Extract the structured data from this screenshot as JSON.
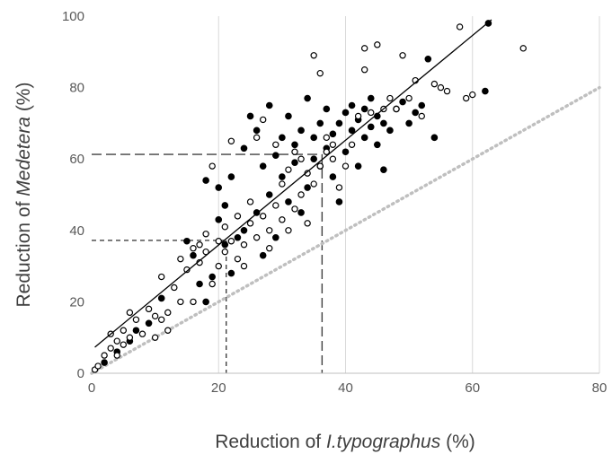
{
  "chart_data": {
    "type": "scatter",
    "xlabel_parts": [
      "Reduction of ",
      "I.typographus",
      " (%)"
    ],
    "ylabel_parts": [
      "Reduction of ",
      "Medetera",
      " (%)"
    ],
    "xlim": [
      0,
      80
    ],
    "ylim": [
      0,
      100
    ],
    "x_ticks": [
      0,
      20,
      40,
      60,
      80
    ],
    "y_ticks": [
      0,
      20,
      40,
      60,
      80,
      100
    ],
    "grid": "vertical",
    "colors": {
      "filled": "#000000",
      "open": "#000000",
      "fit_line": "#000000",
      "identity_line": "#bfbfbf",
      "grid": "#d9d9d9"
    },
    "series": [
      {
        "marker": "filled-circle",
        "points": [
          [
            2,
            3
          ],
          [
            4,
            6
          ],
          [
            6,
            9
          ],
          [
            7,
            12
          ],
          [
            9,
            14
          ],
          [
            11,
            21
          ],
          [
            15,
            37
          ],
          [
            16,
            33
          ],
          [
            17,
            25
          ],
          [
            18,
            20
          ],
          [
            18,
            54
          ],
          [
            19,
            27
          ],
          [
            20,
            43
          ],
          [
            20,
            52
          ],
          [
            21,
            36
          ],
          [
            21,
            47
          ],
          [
            22,
            55
          ],
          [
            22,
            28
          ],
          [
            23,
            38
          ],
          [
            24,
            40
          ],
          [
            24,
            63
          ],
          [
            25,
            72
          ],
          [
            26,
            68
          ],
          [
            26,
            45
          ],
          [
            27,
            58
          ],
          [
            27,
            33
          ],
          [
            28,
            50
          ],
          [
            28,
            75
          ],
          [
            29,
            61
          ],
          [
            29,
            38
          ],
          [
            30,
            55
          ],
          [
            30,
            66
          ],
          [
            31,
            72
          ],
          [
            31,
            48
          ],
          [
            32,
            59
          ],
          [
            32,
            64
          ],
          [
            33,
            68
          ],
          [
            33,
            45
          ],
          [
            34,
            77
          ],
          [
            34,
            52
          ],
          [
            35,
            60
          ],
          [
            35,
            66
          ],
          [
            36,
            70
          ],
          [
            36,
            58
          ],
          [
            37,
            63
          ],
          [
            37,
            74
          ],
          [
            38,
            55
          ],
          [
            38,
            67
          ],
          [
            39,
            70
          ],
          [
            39,
            48
          ],
          [
            40,
            73
          ],
          [
            40,
            62
          ],
          [
            41,
            68
          ],
          [
            41,
            75
          ],
          [
            42,
            58
          ],
          [
            42,
            71
          ],
          [
            43,
            66
          ],
          [
            43,
            74
          ],
          [
            44,
            69
          ],
          [
            44,
            77
          ],
          [
            45,
            64
          ],
          [
            45,
            72
          ],
          [
            46,
            57
          ],
          [
            46,
            70
          ],
          [
            47,
            68
          ],
          [
            48,
            74
          ],
          [
            49,
            76
          ],
          [
            50,
            70
          ],
          [
            51,
            73
          ],
          [
            52,
            75
          ],
          [
            53,
            88
          ],
          [
            54,
            66
          ],
          [
            62,
            79
          ],
          [
            62.5,
            98
          ]
        ]
      },
      {
        "marker": "open-circle",
        "points": [
          [
            0.5,
            1
          ],
          [
            1,
            2
          ],
          [
            2,
            5
          ],
          [
            3,
            7
          ],
          [
            3,
            11
          ],
          [
            4,
            5
          ],
          [
            4,
            9
          ],
          [
            5,
            8
          ],
          [
            5,
            12
          ],
          [
            6,
            10
          ],
          [
            6,
            17
          ],
          [
            7,
            15
          ],
          [
            8,
            11
          ],
          [
            9,
            18
          ],
          [
            10,
            10
          ],
          [
            10,
            16
          ],
          [
            11,
            15
          ],
          [
            11,
            27
          ],
          [
            12,
            17
          ],
          [
            12,
            12
          ],
          [
            13,
            24
          ],
          [
            14,
            32
          ],
          [
            14,
            20
          ],
          [
            15,
            29
          ],
          [
            16,
            35
          ],
          [
            16,
            20
          ],
          [
            17,
            36
          ],
          [
            17,
            31
          ],
          [
            18,
            34
          ],
          [
            18,
            39
          ],
          [
            19,
            25
          ],
          [
            19,
            58
          ],
          [
            20,
            37
          ],
          [
            20,
            30
          ],
          [
            21,
            41
          ],
          [
            21,
            34
          ],
          [
            22,
            37
          ],
          [
            22,
            65
          ],
          [
            23,
            32
          ],
          [
            23,
            44
          ],
          [
            24,
            36
          ],
          [
            24,
            30
          ],
          [
            25,
            42
          ],
          [
            25,
            48
          ],
          [
            26,
            38
          ],
          [
            26,
            66
          ],
          [
            27,
            44
          ],
          [
            27,
            71
          ],
          [
            28,
            40
          ],
          [
            28,
            35
          ],
          [
            29,
            47
          ],
          [
            29,
            64
          ],
          [
            30,
            53
          ],
          [
            30,
            43
          ],
          [
            31,
            57
          ],
          [
            31,
            40
          ],
          [
            32,
            62
          ],
          [
            32,
            46
          ],
          [
            33,
            50
          ],
          [
            33,
            60
          ],
          [
            34,
            56
          ],
          [
            34,
            42
          ],
          [
            35,
            53
          ],
          [
            35,
            89
          ],
          [
            36,
            84
          ],
          [
            36,
            58
          ],
          [
            37,
            62
          ],
          [
            37,
            66
          ],
          [
            38,
            60
          ],
          [
            38,
            64
          ],
          [
            39,
            52
          ],
          [
            40,
            58
          ],
          [
            41,
            64
          ],
          [
            42,
            72
          ],
          [
            43,
            85
          ],
          [
            43,
            91
          ],
          [
            44,
            73
          ],
          [
            45,
            92
          ],
          [
            46,
            74
          ],
          [
            47,
            77
          ],
          [
            48,
            74
          ],
          [
            49,
            89
          ],
          [
            50,
            77
          ],
          [
            51,
            82
          ],
          [
            52,
            72
          ],
          [
            54,
            81
          ],
          [
            55,
            80
          ],
          [
            56,
            79
          ],
          [
            58,
            97
          ],
          [
            59,
            77
          ],
          [
            60,
            78
          ],
          [
            68,
            91
          ]
        ]
      }
    ],
    "fit_line": [
      [
        0.5,
        7.3
      ],
      [
        63,
        99
      ]
    ],
    "identity_line": [
      [
        0,
        0
      ],
      [
        80,
        80
      ]
    ],
    "reference_lines": [
      {
        "style": "long-dash",
        "x": 36.3,
        "y": 61.3
      },
      {
        "style": "short-dash",
        "x": 21.2,
        "y": 37.2
      }
    ]
  }
}
